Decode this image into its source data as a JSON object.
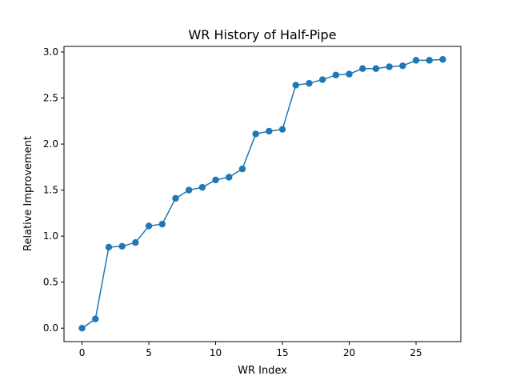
{
  "chart_data": {
    "type": "line",
    "title": "WR History of Half-Pipe",
    "xlabel": "WR Index",
    "ylabel": "Relative Improvement",
    "xlim": [
      -1.35,
      28.35
    ],
    "ylim": [
      -0.146,
      3.061
    ],
    "x_ticks": [
      0,
      5,
      10,
      15,
      20,
      25
    ],
    "x_tick_labels": [
      "0",
      "5",
      "10",
      "15",
      "20",
      "25"
    ],
    "y_ticks": [
      0.0,
      0.5,
      1.0,
      1.5,
      2.0,
      2.5,
      3.0
    ],
    "y_tick_labels": [
      "0.0",
      "0.5",
      "1.0",
      "1.5",
      "2.0",
      "2.5",
      "3.0"
    ],
    "grid": false,
    "series": [
      {
        "color": "#1f77b4",
        "marker": "circle",
        "x": [
          0,
          1,
          2,
          3,
          4,
          5,
          6,
          7,
          8,
          9,
          10,
          11,
          12,
          13,
          14,
          15,
          16,
          17,
          18,
          19,
          20,
          21,
          22,
          23,
          24,
          25,
          26,
          27
        ],
        "y": [
          0.0,
          0.1,
          0.88,
          0.89,
          0.93,
          1.11,
          1.13,
          1.41,
          1.5,
          1.53,
          1.61,
          1.64,
          1.73,
          2.11,
          2.14,
          2.16,
          2.64,
          2.66,
          2.7,
          2.75,
          2.76,
          2.82,
          2.82,
          2.84,
          2.85,
          2.91,
          2.91,
          2.92
        ]
      }
    ]
  }
}
